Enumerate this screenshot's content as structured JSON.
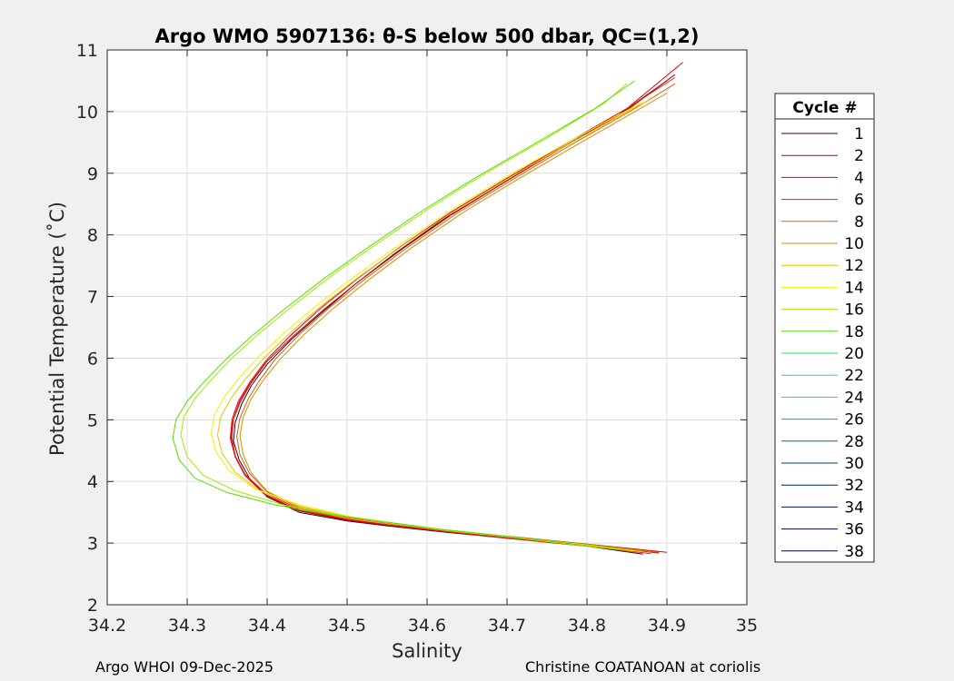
{
  "chart_data": {
    "type": "line",
    "title": "Argo WMO 5907136: θ-S below 500 dbar,  QC=(1,2)",
    "xlabel": "Salinity",
    "ylabel": "Potential Temperature (˚C)",
    "xlim": [
      34.2,
      35
    ],
    "ylim": [
      2,
      11
    ],
    "xticks": [
      "34.2",
      "34.3",
      "34.4",
      "34.5",
      "34.6",
      "34.7",
      "34.8",
      "34.9",
      "35"
    ],
    "yticks": [
      "2",
      "3",
      "4",
      "5",
      "6",
      "7",
      "8",
      "9",
      "10",
      "11"
    ],
    "grid": true,
    "legend": {
      "title": "Cycle #",
      "position": "right outside",
      "entries": [
        {
          "label": "1",
          "color": "#3a0010"
        },
        {
          "label": "2",
          "color": "#c00000"
        },
        {
          "label": "4",
          "color": "#e00000"
        },
        {
          "label": "6",
          "color": "#e82020"
        },
        {
          "label": "8",
          "color": "#e65a00"
        },
        {
          "label": "10",
          "color": "#d98c00"
        },
        {
          "label": "12",
          "color": "#e8c200"
        },
        {
          "label": "14",
          "color": "#f5f000"
        },
        {
          "label": "16",
          "color": "#a8e800"
        },
        {
          "label": "18",
          "color": "#55e000"
        },
        {
          "label": "20",
          "color": "#20e050"
        },
        {
          "label": "22",
          "color": "#10e0a0"
        },
        {
          "label": "24",
          "color": "#10d0d0"
        },
        {
          "label": "26",
          "color": "#00a8b0"
        },
        {
          "label": "28",
          "color": "#007080"
        },
        {
          "label": "30",
          "color": "#004060"
        },
        {
          "label": "32",
          "color": "#002050"
        },
        {
          "label": "34",
          "color": "#001048"
        },
        {
          "label": "36",
          "color": "#000840"
        },
        {
          "label": "38",
          "color": "#000038"
        }
      ]
    },
    "series": [
      {
        "name": "1",
        "color": "#3a0010",
        "points": [
          [
            34.87,
            2.82
          ],
          [
            34.8,
            2.95
          ],
          [
            34.7,
            3.08
          ],
          [
            34.62,
            3.18
          ],
          [
            34.55,
            3.28
          ],
          [
            34.5,
            3.36
          ],
          [
            34.44,
            3.5
          ],
          [
            34.4,
            3.75
          ],
          [
            34.378,
            4.05
          ],
          [
            34.365,
            4.35
          ],
          [
            34.358,
            4.65
          ],
          [
            34.36,
            4.95
          ],
          [
            34.368,
            5.25
          ],
          [
            34.38,
            5.55
          ],
          [
            34.4,
            5.9
          ],
          [
            34.43,
            6.3
          ],
          [
            34.465,
            6.7
          ],
          [
            34.51,
            7.2
          ],
          [
            34.56,
            7.7
          ],
          [
            34.62,
            8.25
          ],
          [
            34.69,
            8.8
          ],
          [
            34.76,
            9.35
          ],
          [
            34.84,
            9.95
          ],
          [
            34.9,
            10.5
          ]
        ]
      },
      {
        "name": "2",
        "color": "#c00000",
        "points": [
          [
            34.89,
            2.84
          ],
          [
            34.8,
            2.96
          ],
          [
            34.7,
            3.09
          ],
          [
            34.62,
            3.19
          ],
          [
            34.55,
            3.29
          ],
          [
            34.5,
            3.37
          ],
          [
            34.44,
            3.52
          ],
          [
            34.398,
            3.78
          ],
          [
            34.374,
            4.08
          ],
          [
            34.361,
            4.38
          ],
          [
            34.355,
            4.68
          ],
          [
            34.357,
            4.98
          ],
          [
            34.366,
            5.28
          ],
          [
            34.379,
            5.58
          ],
          [
            34.4,
            5.95
          ],
          [
            34.432,
            6.35
          ],
          [
            34.47,
            6.78
          ],
          [
            34.515,
            7.25
          ],
          [
            34.57,
            7.78
          ],
          [
            34.63,
            8.32
          ],
          [
            34.7,
            8.88
          ],
          [
            34.77,
            9.42
          ],
          [
            34.85,
            10.02
          ],
          [
            34.91,
            10.6
          ]
        ]
      },
      {
        "name": "4",
        "color": "#e00000",
        "points": [
          [
            34.9,
            2.85
          ],
          [
            34.81,
            2.97
          ],
          [
            34.71,
            3.1
          ],
          [
            34.62,
            3.2
          ],
          [
            34.55,
            3.3
          ],
          [
            34.5,
            3.38
          ],
          [
            34.44,
            3.53
          ],
          [
            34.396,
            3.8
          ],
          [
            34.372,
            4.1
          ],
          [
            34.36,
            4.4
          ],
          [
            34.354,
            4.7
          ],
          [
            34.356,
            5.0
          ],
          [
            34.364,
            5.3
          ],
          [
            34.378,
            5.6
          ],
          [
            34.398,
            5.95
          ],
          [
            34.428,
            6.35
          ],
          [
            34.466,
            6.8
          ],
          [
            34.512,
            7.28
          ],
          [
            34.566,
            7.8
          ],
          [
            34.628,
            8.35
          ],
          [
            34.698,
            8.9
          ],
          [
            34.77,
            9.45
          ],
          [
            34.85,
            10.05
          ],
          [
            34.92,
            10.8
          ]
        ]
      },
      {
        "name": "6",
        "color": "#e82020",
        "points": [
          [
            34.88,
            2.83
          ],
          [
            34.8,
            2.95
          ],
          [
            34.7,
            3.08
          ],
          [
            34.62,
            3.19
          ],
          [
            34.55,
            3.3
          ],
          [
            34.5,
            3.39
          ],
          [
            34.44,
            3.55
          ],
          [
            34.397,
            3.82
          ],
          [
            34.372,
            4.12
          ],
          [
            34.36,
            4.42
          ],
          [
            34.356,
            4.72
          ],
          [
            34.358,
            5.02
          ],
          [
            34.366,
            5.32
          ],
          [
            34.38,
            5.62
          ],
          [
            34.4,
            5.98
          ],
          [
            34.43,
            6.38
          ],
          [
            34.468,
            6.82
          ],
          [
            34.514,
            7.3
          ],
          [
            34.568,
            7.82
          ],
          [
            34.63,
            8.37
          ],
          [
            34.7,
            8.92
          ],
          [
            34.772,
            9.47
          ],
          [
            34.85,
            10.05
          ],
          [
            34.91,
            10.55
          ]
        ]
      },
      {
        "name": "8",
        "color": "#e65a00",
        "points": [
          [
            34.89,
            2.85
          ],
          [
            34.8,
            2.97
          ],
          [
            34.7,
            3.1
          ],
          [
            34.62,
            3.21
          ],
          [
            34.55,
            3.32
          ],
          [
            34.5,
            3.41
          ],
          [
            34.44,
            3.57
          ],
          [
            34.4,
            3.83
          ],
          [
            34.378,
            4.13
          ],
          [
            34.366,
            4.43
          ],
          [
            34.362,
            4.73
          ],
          [
            34.366,
            5.03
          ],
          [
            34.376,
            5.33
          ],
          [
            34.39,
            5.63
          ],
          [
            34.41,
            5.98
          ],
          [
            34.44,
            6.38
          ],
          [
            34.478,
            6.82
          ],
          [
            34.524,
            7.3
          ],
          [
            34.578,
            7.82
          ],
          [
            34.64,
            8.37
          ],
          [
            34.71,
            8.92
          ],
          [
            34.78,
            9.46
          ],
          [
            34.86,
            10.05
          ],
          [
            34.91,
            10.45
          ]
        ]
      },
      {
        "name": "10",
        "color": "#d98c00",
        "points": [
          [
            34.88,
            2.86
          ],
          [
            34.8,
            2.98
          ],
          [
            34.7,
            3.11
          ],
          [
            34.62,
            3.22
          ],
          [
            34.55,
            3.33
          ],
          [
            34.5,
            3.42
          ],
          [
            34.44,
            3.58
          ],
          [
            34.4,
            3.84
          ],
          [
            34.38,
            4.14
          ],
          [
            34.37,
            4.44
          ],
          [
            34.366,
            4.74
          ],
          [
            34.37,
            5.04
          ],
          [
            34.38,
            5.34
          ],
          [
            34.395,
            5.64
          ],
          [
            34.416,
            5.98
          ],
          [
            34.446,
            6.38
          ],
          [
            34.484,
            6.82
          ],
          [
            34.53,
            7.3
          ],
          [
            34.584,
            7.82
          ],
          [
            34.646,
            8.37
          ],
          [
            34.716,
            8.92
          ],
          [
            34.786,
            9.45
          ],
          [
            34.86,
            10.0
          ],
          [
            34.9,
            10.3
          ]
        ]
      },
      {
        "name": "12",
        "color": "#e8c200",
        "points": [
          [
            34.87,
            2.86
          ],
          [
            34.8,
            2.97
          ],
          [
            34.7,
            3.1
          ],
          [
            34.62,
            3.21
          ],
          [
            34.55,
            3.33
          ],
          [
            34.5,
            3.43
          ],
          [
            34.44,
            3.6
          ],
          [
            34.39,
            3.85
          ],
          [
            34.36,
            4.15
          ],
          [
            34.344,
            4.45
          ],
          [
            34.338,
            4.75
          ],
          [
            34.342,
            5.05
          ],
          [
            34.355,
            5.35
          ],
          [
            34.372,
            5.65
          ],
          [
            34.396,
            6.0
          ],
          [
            34.428,
            6.4
          ],
          [
            34.468,
            6.85
          ],
          [
            34.516,
            7.33
          ],
          [
            34.572,
            7.85
          ],
          [
            34.636,
            8.4
          ],
          [
            34.706,
            8.95
          ],
          [
            34.778,
            9.48
          ],
          [
            34.85,
            10.0
          ],
          [
            34.88,
            10.2
          ]
        ]
      },
      {
        "name": "14",
        "color": "#f5f000",
        "points": [
          [
            34.86,
            2.87
          ],
          [
            34.79,
            2.98
          ],
          [
            34.7,
            3.11
          ],
          [
            34.62,
            3.22
          ],
          [
            34.55,
            3.34
          ],
          [
            34.5,
            3.44
          ],
          [
            34.44,
            3.62
          ],
          [
            34.385,
            3.88
          ],
          [
            34.352,
            4.18
          ],
          [
            34.336,
            4.48
          ],
          [
            34.33,
            4.78
          ],
          [
            34.334,
            5.08
          ],
          [
            34.347,
            5.38
          ],
          [
            34.365,
            5.68
          ],
          [
            34.39,
            6.03
          ],
          [
            34.423,
            6.43
          ],
          [
            34.464,
            6.88
          ],
          [
            34.513,
            7.36
          ],
          [
            34.57,
            7.88
          ],
          [
            34.634,
            8.43
          ],
          [
            34.704,
            8.98
          ],
          [
            34.776,
            9.5
          ],
          [
            34.84,
            9.95
          ],
          [
            34.87,
            10.15
          ]
        ]
      },
      {
        "name": "16",
        "color": "#a8e800",
        "points": [
          [
            34.85,
            2.88
          ],
          [
            34.78,
            2.98
          ],
          [
            34.7,
            3.1
          ],
          [
            34.62,
            3.21
          ],
          [
            34.55,
            3.33
          ],
          [
            34.49,
            3.45
          ],
          [
            34.42,
            3.62
          ],
          [
            34.36,
            3.85
          ],
          [
            34.32,
            4.1
          ],
          [
            34.3,
            4.4
          ],
          [
            34.292,
            4.75
          ],
          [
            34.296,
            5.05
          ],
          [
            34.31,
            5.35
          ],
          [
            34.33,
            5.65
          ],
          [
            34.356,
            6.0
          ],
          [
            34.39,
            6.4
          ],
          [
            34.432,
            6.85
          ],
          [
            34.482,
            7.35
          ],
          [
            34.54,
            7.88
          ],
          [
            34.605,
            8.45
          ],
          [
            34.676,
            9.02
          ],
          [
            34.75,
            9.57
          ],
          [
            34.82,
            10.12
          ],
          [
            34.85,
            10.45
          ]
        ]
      },
      {
        "name": "18",
        "color": "#55e000",
        "points": [
          [
            34.85,
            2.88
          ],
          [
            34.78,
            2.99
          ],
          [
            34.7,
            3.11
          ],
          [
            34.62,
            3.22
          ],
          [
            34.55,
            3.34
          ],
          [
            34.48,
            3.46
          ],
          [
            34.41,
            3.62
          ],
          [
            34.35,
            3.82
          ],
          [
            34.31,
            4.05
          ],
          [
            34.29,
            4.35
          ],
          [
            34.282,
            4.7
          ],
          [
            34.286,
            5.0
          ],
          [
            34.3,
            5.3
          ],
          [
            34.32,
            5.6
          ],
          [
            34.346,
            5.95
          ],
          [
            34.38,
            6.35
          ],
          [
            34.422,
            6.8
          ],
          [
            34.472,
            7.3
          ],
          [
            34.53,
            7.83
          ],
          [
            34.595,
            8.4
          ],
          [
            34.666,
            8.97
          ],
          [
            34.74,
            9.52
          ],
          [
            34.81,
            10.05
          ],
          [
            34.86,
            10.5
          ]
        ]
      }
    ]
  },
  "footer": {
    "left": "Argo WHOI 09-Dec-2025",
    "right": "Christine COATANOAN at coriolis"
  }
}
